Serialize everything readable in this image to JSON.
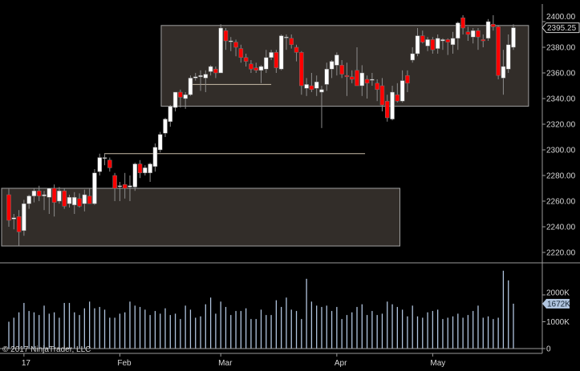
{
  "copyright": "© 2017 NinjaTrader, LLC",
  "colors": {
    "up": "#ffffff",
    "down": "#ff0000",
    "wick": "#8c8c8c",
    "volume": "#b0c4de",
    "box_fill": "#322d29",
    "box_border": "#a0a0a0",
    "line": "#c8bca8"
  },
  "chart_data": [
    {
      "type": "candlestick",
      "title": "",
      "ylim": [
        2212,
        2410
      ],
      "y_ticks": [
        "2220.00",
        "2240.00",
        "2260.00",
        "2280.00",
        "2300.00",
        "2320.00",
        "2340.00",
        "2360.00",
        "2380.00",
        "2400.00"
      ],
      "y_tick_values": [
        2220,
        2240,
        2260,
        2280,
        2300,
        2320,
        2340,
        2360,
        2380,
        2400
      ],
      "last_price_label": "2395.25",
      "last_price": 2395.25,
      "x_ticks": [
        {
          "label": "17",
          "index": 3
        },
        {
          "label": "Feb",
          "index": 22
        },
        {
          "label": "Mar",
          "index": 42
        },
        {
          "label": "Apr",
          "index": 65
        },
        {
          "label": "May",
          "index": 84
        }
      ],
      "ohlc": [
        [
          2265,
          2270,
          2240,
          2245
        ],
        [
          2246,
          2250,
          2238,
          2247
        ],
        [
          2248,
          2253,
          2225,
          2236
        ],
        [
          2237,
          2261,
          2233,
          2258
        ],
        [
          2258,
          2265,
          2254,
          2264
        ],
        [
          2264,
          2270,
          2259,
          2268
        ],
        [
          2268,
          2272,
          2260,
          2264
        ],
        [
          2264,
          2268,
          2253,
          2265
        ],
        [
          2263,
          2270,
          2250,
          2270
        ],
        [
          2270,
          2273,
          2248,
          2259
        ],
        [
          2260,
          2271,
          2258,
          2268
        ],
        [
          2268,
          2270,
          2254,
          2256
        ],
        [
          2258,
          2265,
          2255,
          2263
        ],
        [
          2257,
          2267,
          2250,
          2263
        ],
        [
          2262,
          2266,
          2255,
          2256
        ],
        [
          2258,
          2269,
          2252,
          2265
        ],
        [
          2264,
          2270,
          2258,
          2258
        ],
        [
          2258,
          2285,
          2257,
          2282
        ],
        [
          2283,
          2297,
          2280,
          2294
        ],
        [
          2294,
          2297,
          2288,
          2294
        ],
        [
          2292,
          2294,
          2283,
          2286
        ],
        [
          2280,
          2282,
          2260,
          2270
        ],
        [
          2272,
          2275,
          2260,
          2272
        ],
        [
          2273,
          2282,
          2262,
          2270
        ],
        [
          2271,
          2280,
          2260,
          2272
        ],
        [
          2271,
          2290,
          2268,
          2289
        ],
        [
          2289,
          2292,
          2278,
          2282
        ],
        [
          2282,
          2288,
          2280,
          2286
        ],
        [
          2282,
          2290,
          2275,
          2289
        ],
        [
          2287,
          2305,
          2283,
          2302
        ],
        [
          2300,
          2314,
          2298,
          2312
        ],
        [
          2313,
          2325,
          2310,
          2324
        ],
        [
          2322,
          2335,
          2318,
          2334
        ],
        [
          2333,
          2345,
          2330,
          2345
        ],
        [
          2345,
          2347,
          2333,
          2341
        ],
        [
          2340,
          2345,
          2332,
          2343
        ],
        [
          2343,
          2358,
          2342,
          2356
        ],
        [
          2356,
          2360,
          2354,
          2357
        ],
        [
          2357,
          2362,
          2346,
          2358
        ],
        [
          2356,
          2362,
          2345,
          2359
        ],
        [
          2361,
          2366,
          2358,
          2365
        ],
        [
          2363,
          2365,
          2356,
          2360
        ],
        [
          2360,
          2398,
          2360,
          2395
        ],
        [
          2393,
          2395,
          2378,
          2385
        ],
        [
          2385,
          2388,
          2377,
          2385
        ],
        [
          2384,
          2386,
          2373,
          2380
        ],
        [
          2379,
          2382,
          2368,
          2372
        ],
        [
          2372,
          2375,
          2365,
          2369
        ],
        [
          2367,
          2370,
          2360,
          2363
        ],
        [
          2364,
          2368,
          2360,
          2362
        ],
        [
          2362,
          2366,
          2352,
          2365
        ],
        [
          2363,
          2378,
          2360,
          2372
        ],
        [
          2372,
          2378,
          2370,
          2376
        ],
        [
          2376,
          2378,
          2360,
          2364
        ],
        [
          2363,
          2390,
          2362,
          2389
        ],
        [
          2388,
          2390,
          2378,
          2388
        ],
        [
          2387,
          2390,
          2379,
          2382
        ],
        [
          2380,
          2382,
          2369,
          2376
        ],
        [
          2376,
          2377,
          2343,
          2350
        ],
        [
          2348,
          2356,
          2342,
          2351
        ],
        [
          2350,
          2360,
          2345,
          2347
        ],
        [
          2348,
          2358,
          2342,
          2353
        ],
        [
          2345,
          2350,
          2317,
          2347
        ],
        [
          2351,
          2368,
          2346,
          2363
        ],
        [
          2363,
          2370,
          2356,
          2369
        ],
        [
          2366,
          2376,
          2358,
          2374
        ],
        [
          2366,
          2370,
          2356,
          2359
        ],
        [
          2358,
          2368,
          2342,
          2357
        ],
        [
          2357,
          2362,
          2352,
          2355
        ],
        [
          2362,
          2380,
          2350,
          2350
        ],
        [
          2350,
          2366,
          2342,
          2360
        ],
        [
          2355,
          2358,
          2340,
          2352
        ],
        [
          2355,
          2360,
          2350,
          2355
        ],
        [
          2352,
          2355,
          2338,
          2347
        ],
        [
          2350,
          2356,
          2330,
          2335
        ],
        [
          2338,
          2343,
          2322,
          2325
        ],
        [
          2324,
          2350,
          2323,
          2345
        ],
        [
          2343,
          2352,
          2337,
          2338
        ],
        [
          2338,
          2362,
          2337,
          2354
        ],
        [
          2358,
          2362,
          2345,
          2352
        ],
        [
          2370,
          2380,
          2368,
          2375
        ],
        [
          2375,
          2395,
          2373,
          2389
        ],
        [
          2389,
          2393,
          2383,
          2384
        ],
        [
          2381,
          2388,
          2377,
          2386
        ],
        [
          2386,
          2388,
          2375,
          2378
        ],
        [
          2379,
          2390,
          2375,
          2387
        ],
        [
          2385,
          2387,
          2378,
          2386
        ],
        [
          2386,
          2387,
          2374,
          2384
        ],
        [
          2382,
          2392,
          2375,
          2387
        ],
        [
          2387,
          2400,
          2378,
          2399
        ],
        [
          2403,
          2405,
          2390,
          2395
        ],
        [
          2392,
          2396,
          2385,
          2390
        ],
        [
          2388,
          2395,
          2383,
          2393
        ],
        [
          2393,
          2395,
          2378,
          2388
        ],
        [
          2386,
          2390,
          2380,
          2385
        ],
        [
          2387,
          2402,
          2385,
          2400
        ],
        [
          2398,
          2405,
          2393,
          2396
        ],
        [
          2396,
          2397,
          2355,
          2358
        ],
        [
          2356,
          2378,
          2343,
          2365
        ],
        [
          2363,
          2390,
          2360,
          2382
        ],
        [
          2380,
          2398,
          2378,
          2395.25
        ]
      ],
      "rectangles": [
        {
          "from_index": -1.5,
          "to_index": 77.5,
          "top": 2270,
          "bottom": 2225
        },
        {
          "from_index": 30.2,
          "to_index": 103,
          "top": 2397,
          "bottom": 2334
        }
      ],
      "hlines": [
        {
          "from_index": 36.4,
          "to_index": 52,
          "price": 2351
        },
        {
          "from_index": 18.9,
          "to_index": 70.6,
          "price": 2297
        }
      ]
    },
    {
      "type": "bar",
      "title": "Volume",
      "ylim": [
        0,
        3100
      ],
      "y_ticks": [
        "0",
        "1000K",
        "2000K"
      ],
      "y_tick_values": [
        0,
        1000,
        2000
      ],
      "last_volume_label": "1672K",
      "values_k": [
        1000,
        1150,
        1350,
        1700,
        1400,
        1350,
        1250,
        1600,
        1300,
        1350,
        1150,
        1700,
        1700,
        1350,
        1250,
        1500,
        1750,
        1500,
        1550,
        1450,
        1150,
        1150,
        1300,
        1350,
        1750,
        1600,
        1550,
        1450,
        1250,
        1400,
        1300,
        1500,
        1250,
        1300,
        1100,
        1600,
        1450,
        1150,
        1200,
        1650,
        1900,
        1300,
        1750,
        1550,
        1250,
        1400,
        1400,
        1500,
        1100,
        1100,
        1450,
        1250,
        1250,
        1800,
        1550,
        1900,
        1450,
        1400,
        1100,
        2600,
        1750,
        1600,
        1550,
        1600,
        1400,
        1550,
        1100,
        1250,
        1350,
        1550,
        1650,
        1250,
        1400,
        1250,
        1300,
        1750,
        1650,
        1550,
        1450,
        1200,
        1600,
        1200,
        1150,
        1350,
        1400,
        1450,
        1100,
        1150,
        1200,
        1300,
        1150,
        1250,
        1400,
        1600,
        1150,
        1200,
        1100,
        1150,
        2900,
        2540,
        1672
      ]
    }
  ]
}
